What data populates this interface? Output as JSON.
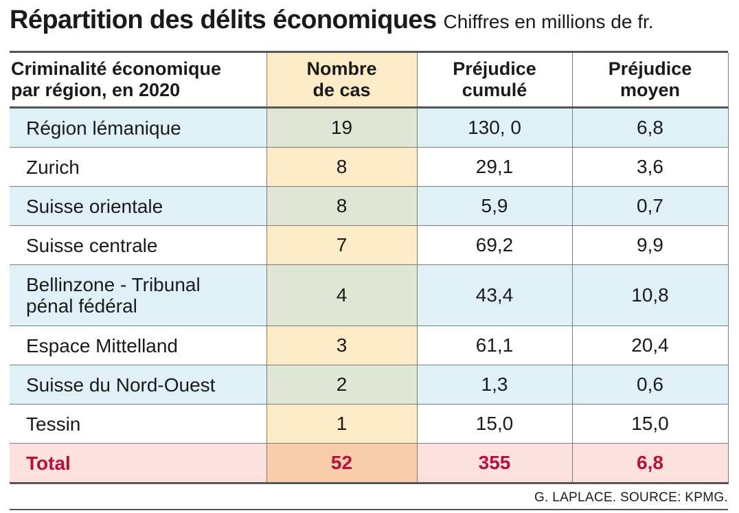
{
  "title": "Répartition des délits économiques",
  "subtitle": "Chiffres en millions de fr.",
  "source": "G. LAPLACE. SOURCE: KPMG.",
  "colors": {
    "header_cases_bg": "#fdebc8",
    "row_blue": "#dff0f7",
    "row_green": "#dfe6d4",
    "total_bg": "#fbe0dd",
    "total_cases_bg": "#f9ccaa",
    "total_text": "#b5113a"
  },
  "chart_data": {
    "type": "table",
    "title": "Répartition des délits économiques",
    "subtitle": "Chiffres en millions de fr.",
    "columns": [
      {
        "line1": "Criminalité économique",
        "line2": "par région, en 2020"
      },
      {
        "line1": "Nombre",
        "line2": "de cas"
      },
      {
        "line1": "Préjudice",
        "line2": "cumulé"
      },
      {
        "line1": "Préjudice",
        "line2": "moyen"
      }
    ],
    "rows": [
      {
        "region": "Région lémanique",
        "cases": "19",
        "cumul": "130, 0",
        "moyen": "6,8"
      },
      {
        "region": "Zurich",
        "cases": "8",
        "cumul": "29,1",
        "moyen": "3,6"
      },
      {
        "region": "Suisse orientale",
        "cases": "8",
        "cumul": "5,9",
        "moyen": "0,7"
      },
      {
        "region": "Suisse centrale",
        "cases": "7",
        "cumul": "69,2",
        "moyen": "9,9"
      },
      {
        "region_line1": "Bellinzone - Tribunal",
        "region_line2": "pénal fédéral",
        "cases": "4",
        "cumul": "43,4",
        "moyen": "10,8"
      },
      {
        "region": "Espace Mittelland",
        "cases": "3",
        "cumul": "61,1",
        "moyen": "20,4"
      },
      {
        "region": "Suisse du Nord-Ouest",
        "cases": "2",
        "cumul": "1,3",
        "moyen": "0,6"
      },
      {
        "region": "Tessin",
        "cases": "1",
        "cumul": "15,0",
        "moyen": "15,0"
      }
    ],
    "total": {
      "label": "Total",
      "cases": "52",
      "cumul": "355",
      "moyen": "6,8"
    }
  }
}
